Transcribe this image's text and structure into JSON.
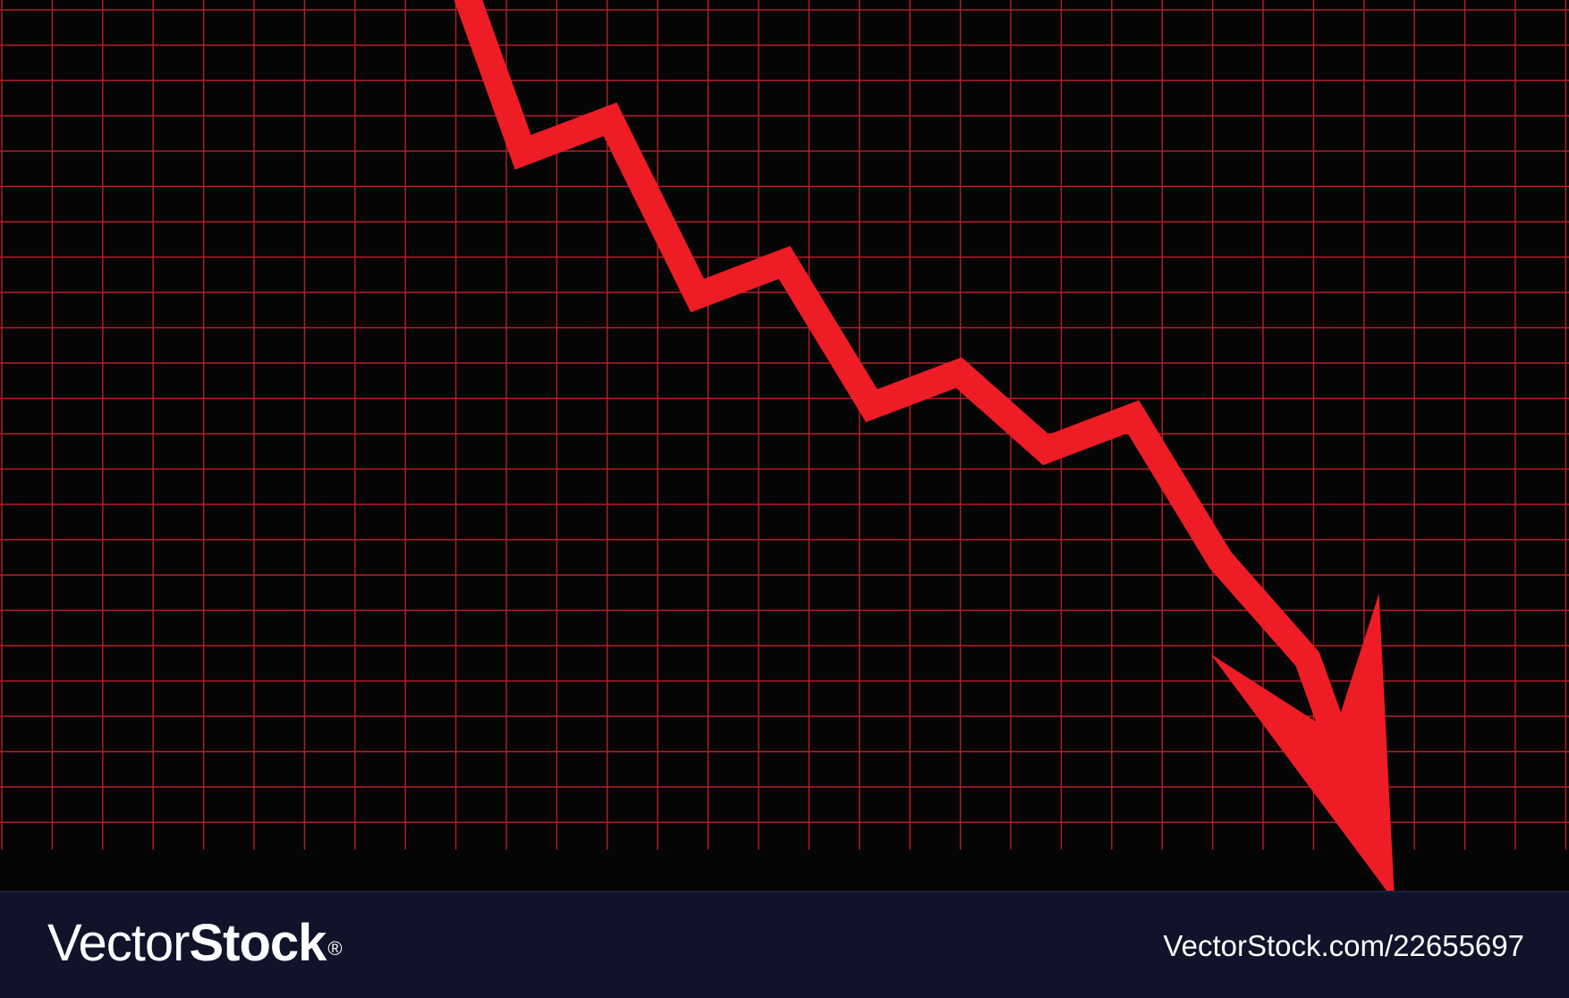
{
  "chart_data": {
    "type": "line",
    "title": "",
    "xlabel": "",
    "ylabel": "",
    "grid": true,
    "x": [
      0,
      1,
      2,
      3,
      4,
      5,
      6,
      7,
      8,
      9,
      10,
      11,
      12,
      13
    ],
    "series": [
      {
        "values": [
          100,
          93,
          96,
          74,
          77,
          61,
          64,
          51,
          54,
          47,
          50,
          37,
          28,
          6
        ],
        "arrowhead": true
      }
    ],
    "xlim": [
      -3,
      15
    ],
    "ylim": [
      0,
      100
    ],
    "colors": {
      "background": "#050505",
      "grid": "#b81e28",
      "line": "#ee1c25"
    }
  },
  "footer": {
    "brand_light": "Vector",
    "brand_bold": "Stock",
    "brand_mark": "®",
    "url": "VectorStock.com/22655697",
    "background": "#10132a"
  }
}
